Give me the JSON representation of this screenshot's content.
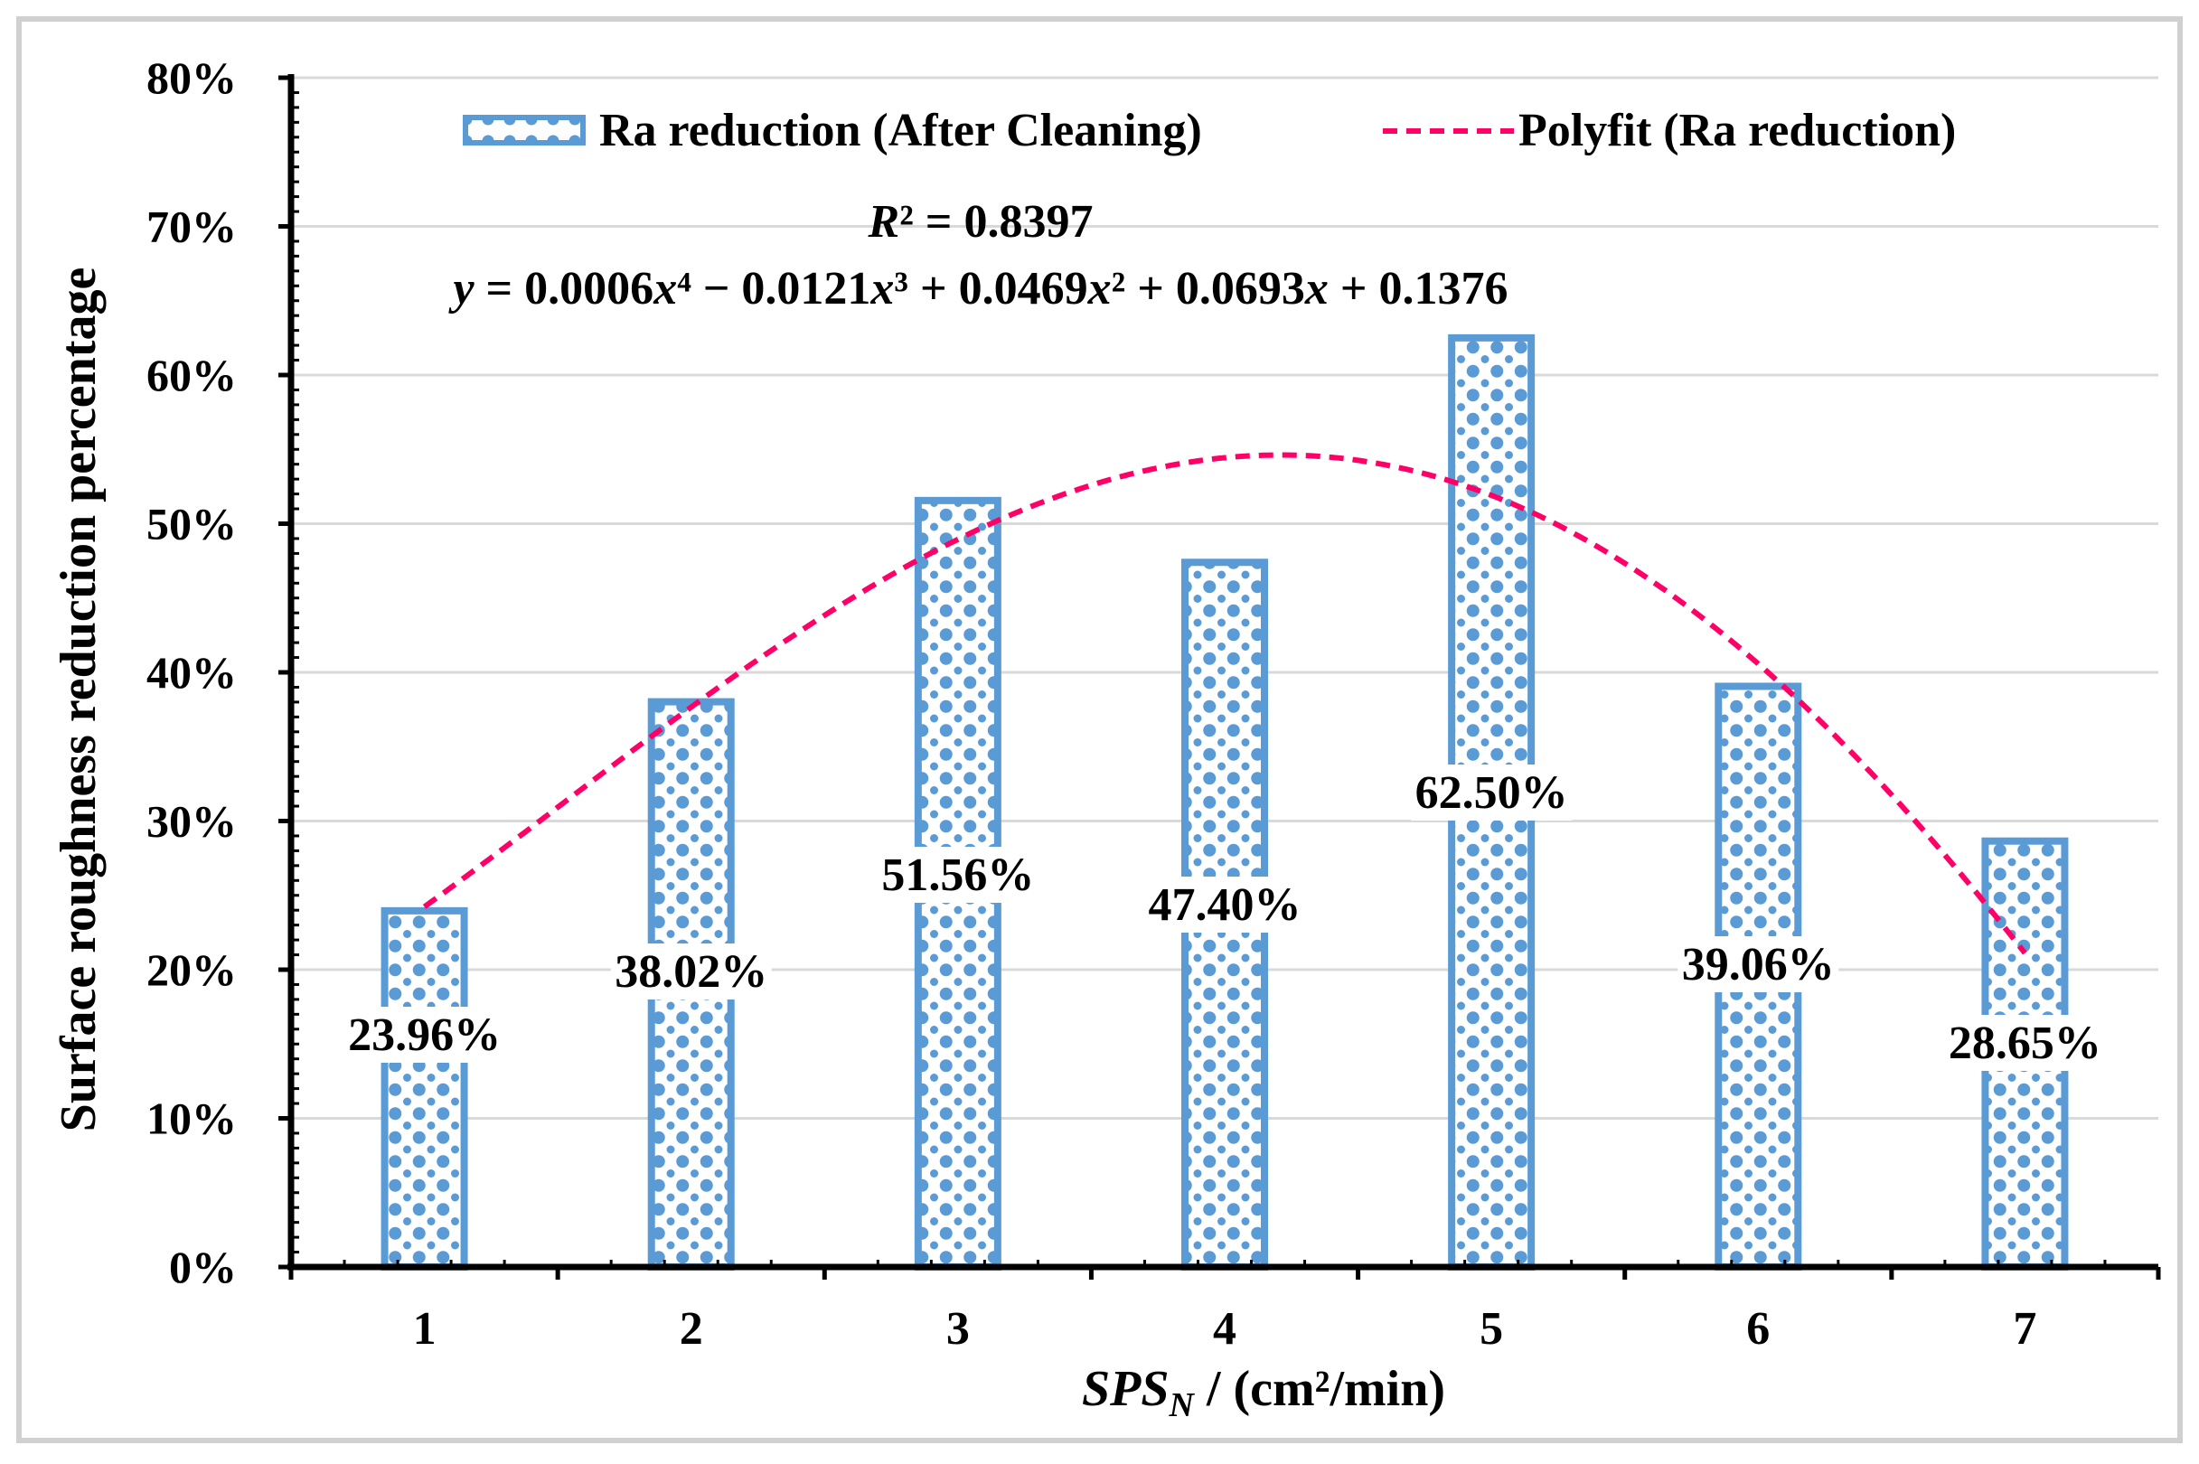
{
  "chart_data": {
    "type": "bar",
    "title": "",
    "xlabel": "SPS_N / (cm²/min)",
    "xlabel_parts": {
      "main": "SPS",
      "sub": "N",
      "rest": " / (cm²/min)"
    },
    "ylabel": "Surface roughness reduction percentage",
    "ylim": [
      0,
      0.8
    ],
    "yticks": [
      "0%",
      "10%",
      "20%",
      "30%",
      "40%",
      "50%",
      "60%",
      "70%",
      "80%"
    ],
    "ytick_values": [
      0,
      0.1,
      0.2,
      0.3,
      0.4,
      0.5,
      0.6,
      0.7,
      0.8
    ],
    "categories": [
      "1",
      "2",
      "3",
      "4",
      "5",
      "6",
      "7"
    ],
    "grid": true,
    "legend_position": "top",
    "series": [
      {
        "name": "Ra reduction (After Cleaning)",
        "kind": "bar",
        "values": [
          0.2396,
          0.3802,
          0.5156,
          0.474,
          0.625,
          0.3906,
          0.2865
        ],
        "labels": [
          "23.96%",
          "38.02%",
          "51.56%",
          "47.40%",
          "62.50%",
          "39.06%",
          "28.65%"
        ],
        "color": "#5b9bd5"
      },
      {
        "name": "Polyfit (Ra reduction)",
        "kind": "trendline",
        "coefficients": [
          0.0006,
          -0.0121,
          0.0469,
          0.0693,
          0.1376
        ],
        "color": "#ff0066"
      }
    ],
    "annotations": {
      "r2": {
        "italic": "R",
        "rest": "² = 0.8397"
      },
      "equation": {
        "parts": [
          {
            "t": "y",
            "i": true
          },
          {
            "t": " = 0.0006"
          },
          {
            "t": "x",
            "i": true
          },
          {
            "t": "⁴ − 0.0121"
          },
          {
            "t": "x",
            "i": true
          },
          {
            "t": "³ + 0.0469"
          },
          {
            "t": "x",
            "i": true
          },
          {
            "t": "² + 0.0693"
          },
          {
            "t": "x",
            "i": true
          },
          {
            "t": " + 0.1376"
          }
        ]
      }
    }
  }
}
